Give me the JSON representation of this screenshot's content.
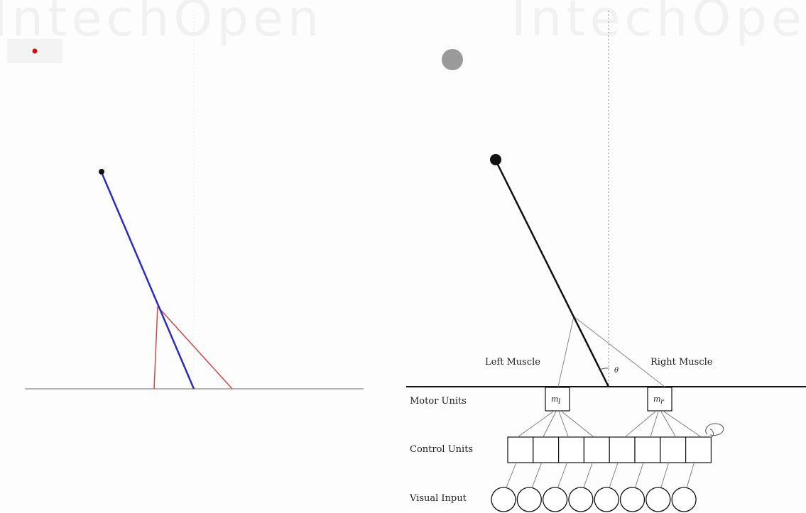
{
  "watermark": "IntechOpen",
  "labels": {
    "left_muscle": "Left Muscle",
    "right_muscle": "Right Muscle",
    "motor_units": "Motor Units",
    "control_units": "Control Units",
    "visual_input": "Visual Input",
    "theta": "θ",
    "m_left": "m",
    "m_left_sub": "l",
    "m_right": "m",
    "m_right_sub": "r"
  },
  "diagram": {
    "control_unit_count": 8,
    "visual_input_count": 8
  },
  "colors": {
    "pole_left": "#2b2bc8",
    "muscle_left": "#d44848",
    "target_dot": "#cc1111",
    "ground_left": "#b5b5b5",
    "target_ball": "#9a9a9a",
    "ink": "#111111",
    "thin_line": "#777777"
  }
}
